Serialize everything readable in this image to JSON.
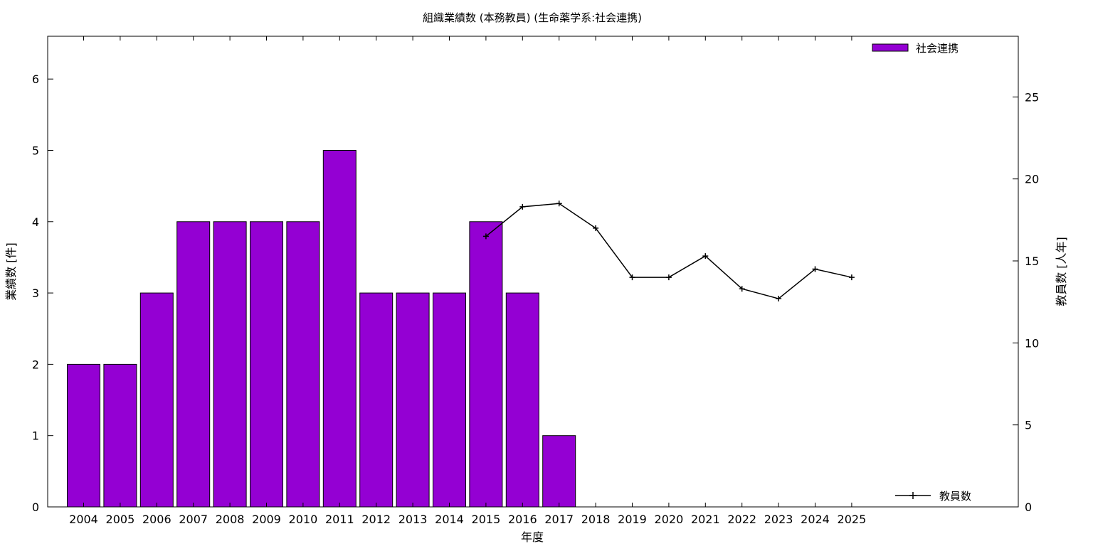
{
  "chart_data": {
    "type": "bar",
    "title": "組織業績数 (本務教員) (生命薬学系:社会連携)",
    "xlabel": "年度",
    "ylabel": "業績数 [件]",
    "y2label": "教員数 [人年]",
    "categories": [
      "2004",
      "2005",
      "2006",
      "2007",
      "2008",
      "2009",
      "2010",
      "2011",
      "2012",
      "2013",
      "2014",
      "2015",
      "2016",
      "2017",
      "2018",
      "2019",
      "2020",
      "2021",
      "2022",
      "2023",
      "2024",
      "2025"
    ],
    "ylim": [
      0,
      6.6
    ],
    "y2lim": [
      0,
      28.7
    ],
    "yticks": [
      0,
      1,
      2,
      3,
      4,
      5,
      6
    ],
    "y2ticks": [
      0,
      5,
      10,
      15,
      20,
      25
    ],
    "series": [
      {
        "name": "社会連携",
        "type": "bar",
        "axis": "left",
        "color": "#9400d3",
        "values": [
          2,
          2,
          3,
          4,
          4,
          4,
          4,
          5,
          3,
          3,
          3,
          4,
          3,
          1,
          null,
          null,
          null,
          null,
          null,
          null,
          null,
          null
        ]
      },
      {
        "name": "教員数",
        "type": "line",
        "axis": "right",
        "color": "#000000",
        "marker": "plus",
        "values": [
          null,
          null,
          null,
          null,
          null,
          null,
          null,
          null,
          null,
          null,
          null,
          16.5,
          18.3,
          18.5,
          17.0,
          14.0,
          14.0,
          15.3,
          13.3,
          12.7,
          14.5,
          14.0
        ]
      }
    ],
    "grid": false,
    "legend_bar_position": "top-right",
    "legend_line_position": "bottom-right"
  }
}
